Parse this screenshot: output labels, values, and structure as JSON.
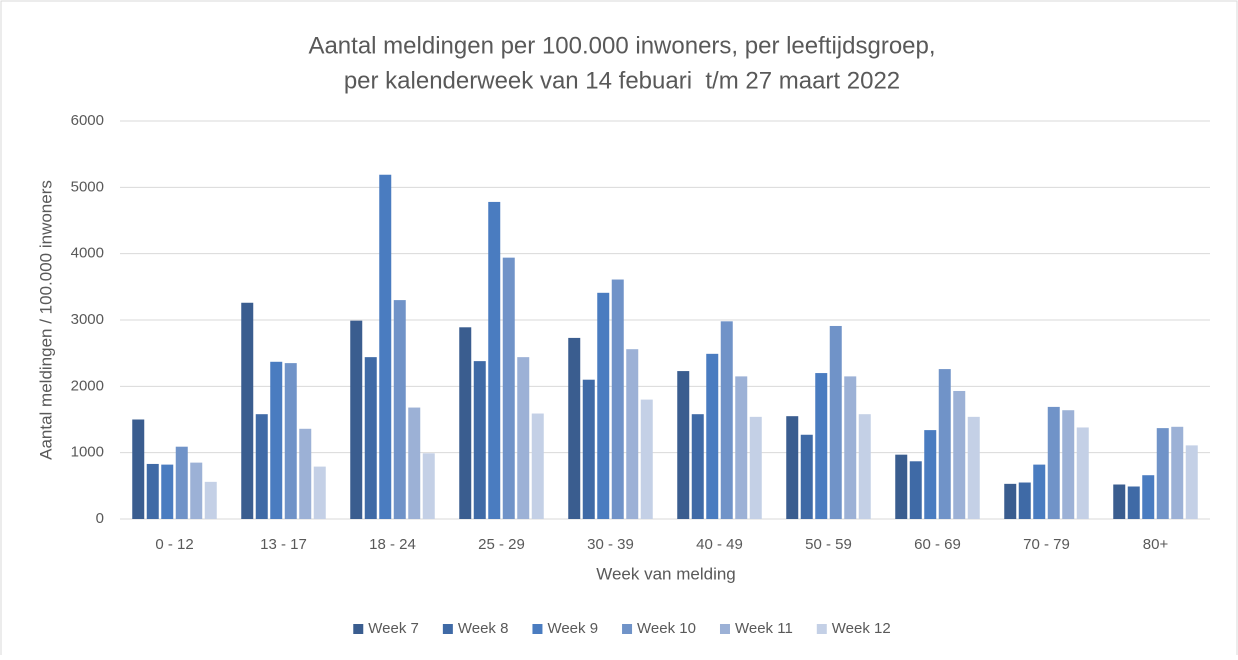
{
  "chart_data": {
    "type": "bar",
    "title": [
      "Aantal meldingen per 100.000 inwoners, per leeftijdsgroep,",
      "per kalenderweek van 14 febuari  t/m 27 maart 2022"
    ],
    "x_label": "Week van melding",
    "y_label": "Aantal meldingen / 100.000 inwoners",
    "categories": [
      "0 - 12",
      "13 - 17",
      "18 - 24",
      "25 - 29",
      "30 - 39",
      "40 - 49",
      "50 - 59",
      "60 - 69",
      "70 - 79",
      "80+"
    ],
    "series": [
      {
        "name": "Week 7",
        "color": "#3a5d8f",
        "values": [
          1500,
          3260,
          2990,
          2890,
          2730,
          2230,
          1550,
          970,
          530,
          520
        ]
      },
      {
        "name": "Week 8",
        "color": "#3f6aa6",
        "values": [
          830,
          1580,
          2440,
          2380,
          2100,
          1580,
          1270,
          870,
          550,
          490
        ]
      },
      {
        "name": "Week 9",
        "color": "#4a7cc0",
        "values": [
          820,
          2370,
          5190,
          4780,
          3410,
          2490,
          2200,
          1340,
          820,
          660
        ]
      },
      {
        "name": "Week 10",
        "color": "#7093c8",
        "values": [
          1090,
          2350,
          3300,
          3940,
          3610,
          2980,
          2910,
          2260,
          1690,
          1370
        ]
      },
      {
        "name": "Week 11",
        "color": "#9cb1d6",
        "values": [
          850,
          1360,
          1680,
          2440,
          2560,
          2150,
          2150,
          1930,
          1640,
          1390
        ]
      },
      {
        "name": "Week 12",
        "color": "#c4d0e6",
        "values": [
          560,
          790,
          990,
          1590,
          1800,
          1540,
          1580,
          1540,
          1380,
          1110
        ]
      }
    ],
    "ylim": [
      0,
      6000
    ],
    "yticks": [
      0,
      1000,
      2000,
      3000,
      4000,
      5000,
      6000
    ],
    "grid": true,
    "legend": "bottom"
  }
}
